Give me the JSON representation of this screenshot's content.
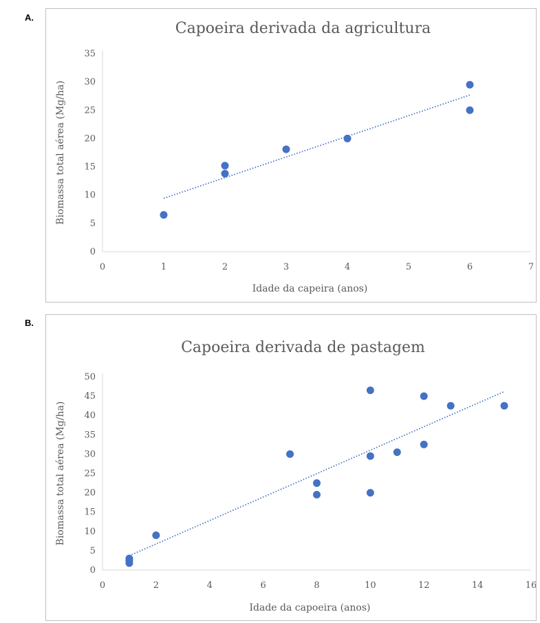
{
  "panels": [
    {
      "letter": "A."
    },
    {
      "letter": "B."
    }
  ],
  "chart_data": [
    {
      "type": "scatter",
      "title": "Capoeira derivada da agricultura",
      "xlabel": "Idade da capeira (anos)",
      "ylabel": "Biomassa total aérea (Mg/ha)",
      "xlim": [
        0,
        7
      ],
      "ylim": [
        0,
        35
      ],
      "xticks": [
        "0",
        "1",
        "2",
        "3",
        "4",
        "5",
        "6",
        "7"
      ],
      "yticks": [
        "0",
        "5",
        "10",
        "15",
        "20",
        "25",
        "30",
        "35"
      ],
      "grid": false,
      "trendline": "linear",
      "series": [
        {
          "x": [
            1,
            2,
            2,
            3,
            4,
            6,
            6
          ],
          "y": [
            6.5,
            15.2,
            13.8,
            18.1,
            20.0,
            29.5,
            25.0
          ]
        }
      ],
      "marker_color": "#4472c4"
    },
    {
      "type": "scatter",
      "title": "Capoeira derivada de pastagem",
      "xlabel": "Idade da capoeira (anos)",
      "ylabel": "Biomassa total aérea (Mg/ha)",
      "xlim": [
        0,
        16
      ],
      "ylim": [
        0,
        50
      ],
      "xticks": [
        "0",
        "2",
        "4",
        "6",
        "8",
        "10",
        "12",
        "14",
        "16"
      ],
      "yticks": [
        "0",
        "5",
        "10",
        "15",
        "20",
        "25",
        "30",
        "35",
        "40",
        "45",
        "50"
      ],
      "grid": false,
      "trendline": "linear",
      "series": [
        {
          "x": [
            1,
            1,
            1,
            2,
            7,
            8,
            8,
            10,
            10,
            10,
            11,
            12,
            12,
            13,
            15
          ],
          "y": [
            3,
            2.5,
            1.8,
            9,
            30,
            22.5,
            19.5,
            46.5,
            29.5,
            20,
            30.5,
            45,
            32.5,
            42.5,
            42.5
          ]
        }
      ],
      "marker_color": "#4472c4"
    }
  ]
}
